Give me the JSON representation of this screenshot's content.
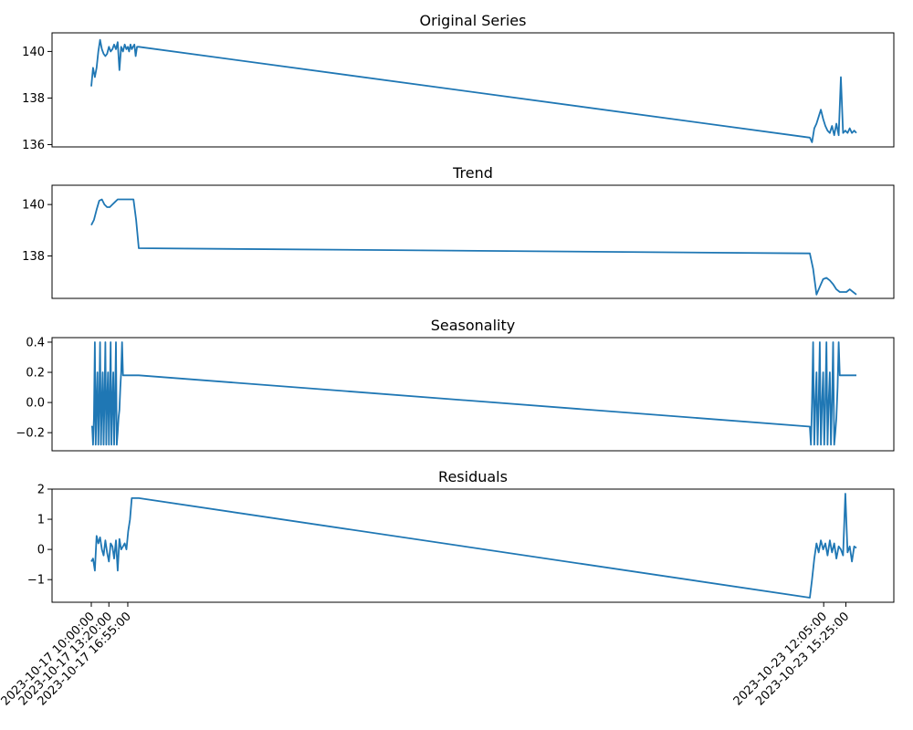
{
  "chart_data": [
    {
      "type": "line",
      "title": "Original Series",
      "ylim": [
        135.9,
        140.8
      ],
      "yticks": [
        136,
        138,
        140
      ],
      "ytick_labels": [
        "136",
        "138",
        "140"
      ],
      "series": [
        {
          "x": [
            "2023-10-17 10:00",
            "2023-10-17 10:20",
            "2023-10-17 10:40",
            "2023-10-17 11:00",
            "2023-10-17 11:20",
            "2023-10-17 11:40",
            "2023-10-17 12:00",
            "2023-10-17 12:20",
            "2023-10-17 12:40",
            "2023-10-17 13:00",
            "2023-10-17 13:20",
            "2023-10-17 13:40",
            "2023-10-17 14:00",
            "2023-10-17 14:20",
            "2023-10-17 14:40",
            "2023-10-17 15:00",
            "2023-10-17 15:20",
            "2023-10-17 15:40",
            "2023-10-17 16:00",
            "2023-10-17 16:20",
            "2023-10-17 16:40",
            "2023-10-17 16:55",
            "2023-10-17 17:10",
            "2023-10-17 17:25",
            "2023-10-17 17:40",
            "2023-10-17 17:55",
            "2023-10-17 18:10",
            "2023-10-17 18:25",
            "2023-10-17 18:40",
            "2023-10-17 19:00",
            "2023-10-23 10:00",
            "2023-10-23 10:20",
            "2023-10-23 10:40",
            "2023-10-23 11:00",
            "2023-10-23 11:20",
            "2023-10-23 11:40",
            "2023-10-23 12:00",
            "2023-10-23 12:20",
            "2023-10-23 12:40",
            "2023-10-23 13:00",
            "2023-10-23 13:20",
            "2023-10-23 13:40",
            "2023-10-23 14:00",
            "2023-10-23 14:20",
            "2023-10-23 14:40",
            "2023-10-23 15:00",
            "2023-10-23 15:20",
            "2023-10-23 15:40",
            "2023-10-23 16:00",
            "2023-10-23 16:20",
            "2023-10-23 16:40",
            "2023-10-23 17:00"
          ],
          "y": [
            138.5,
            139.3,
            138.9,
            139.3,
            140.0,
            140.5,
            140.1,
            139.9,
            139.8,
            139.9,
            140.2,
            140.0,
            140.1,
            140.3,
            140.1,
            140.4,
            139.2,
            140.2,
            140.0,
            140.3,
            140.1,
            140.2,
            140.0,
            140.3,
            140.1,
            140.2,
            140.3,
            139.8,
            140.2,
            140.2,
            136.3,
            136.1,
            136.7,
            136.9,
            137.2,
            137.5,
            137.1,
            136.8,
            136.6,
            136.5,
            136.8,
            136.4,
            136.9,
            136.4,
            138.9,
            136.5,
            136.6,
            136.5,
            136.7,
            136.5,
            136.6,
            136.5
          ]
        }
      ]
    },
    {
      "type": "line",
      "title": "Trend",
      "ylim": [
        136.35,
        140.75
      ],
      "yticks": [
        138,
        140
      ],
      "ytick_labels": [
        "138",
        "140"
      ],
      "series": [
        {
          "x": [
            "2023-10-17 10:00",
            "2023-10-17 10:30",
            "2023-10-17 11:00",
            "2023-10-17 11:30",
            "2023-10-17 12:00",
            "2023-10-17 12:30",
            "2023-10-17 13:00",
            "2023-10-17 13:30",
            "2023-10-17 14:00",
            "2023-10-17 14:30",
            "2023-10-17 15:00",
            "2023-10-17 15:30",
            "2023-10-17 16:00",
            "2023-10-17 16:30",
            "2023-10-17 17:00",
            "2023-10-17 17:30",
            "2023-10-17 18:00",
            "2023-10-17 18:30",
            "2023-10-17 19:00",
            "2023-10-23 10:00",
            "2023-10-23 10:30",
            "2023-10-23 11:00",
            "2023-10-23 11:30",
            "2023-10-23 12:00",
            "2023-10-23 12:30",
            "2023-10-23 13:00",
            "2023-10-23 13:30",
            "2023-10-23 14:00",
            "2023-10-23 14:30",
            "2023-10-23 15:00",
            "2023-10-23 15:30",
            "2023-10-23 16:00",
            "2023-10-23 16:30",
            "2023-10-23 17:00"
          ],
          "y": [
            139.2,
            139.4,
            139.8,
            140.15,
            140.2,
            140.0,
            139.9,
            139.9,
            140.0,
            140.1,
            140.2,
            140.2,
            140.2,
            140.2,
            140.2,
            140.2,
            140.2,
            139.4,
            138.3,
            138.1,
            137.5,
            136.5,
            136.8,
            137.1,
            137.15,
            137.05,
            136.9,
            136.7,
            136.6,
            136.6,
            136.6,
            136.7,
            136.6,
            136.5
          ]
        }
      ]
    },
    {
      "type": "line",
      "title": "Seasonality",
      "ylim": [
        -0.32,
        0.43
      ],
      "yticks": [
        -0.2,
        0.0,
        0.2,
        0.4
      ],
      "ytick_labels": [
        "−0.2",
        "0.0",
        "0.2",
        "0.4"
      ],
      "series": [
        {
          "x": [
            "2023-10-17 10:00",
            "2023-10-17 10:10",
            "2023-10-17 10:20",
            "2023-10-17 10:30",
            "2023-10-17 10:40",
            "2023-10-17 10:50",
            "2023-10-17 11:00",
            "2023-10-17 11:10",
            "2023-10-17 11:20",
            "2023-10-17 11:30",
            "2023-10-17 11:40",
            "2023-10-17 11:50",
            "2023-10-17 12:00",
            "2023-10-17 12:10",
            "2023-10-17 12:20",
            "2023-10-17 12:30",
            "2023-10-17 12:40",
            "2023-10-17 12:50",
            "2023-10-17 13:00",
            "2023-10-17 13:10",
            "2023-10-17 13:20",
            "2023-10-17 13:30",
            "2023-10-17 13:40",
            "2023-10-17 13:50",
            "2023-10-17 14:00",
            "2023-10-17 14:10",
            "2023-10-17 14:20",
            "2023-10-17 14:30",
            "2023-10-17 14:40",
            "2023-10-17 14:50",
            "2023-10-17 15:00",
            "2023-10-17 15:10",
            "2023-10-17 15:20",
            "2023-10-17 15:30",
            "2023-10-17 15:40",
            "2023-10-17 15:50",
            "2023-10-17 16:00",
            "2023-10-17 16:10",
            "2023-10-17 16:20",
            "2023-10-17 16:30",
            "2023-10-17 16:40",
            "2023-10-17 16:50",
            "2023-10-17 17:00",
            "2023-10-17 17:10",
            "2023-10-17 17:20",
            "2023-10-17 17:30",
            "2023-10-17 17:40",
            "2023-10-17 17:50",
            "2023-10-17 18:00",
            "2023-10-17 18:10",
            "2023-10-17 18:20",
            "2023-10-17 18:30",
            "2023-10-17 18:40",
            "2023-10-17 18:50",
            "2023-10-17 19:00",
            "2023-10-23 10:00",
            "2023-10-23 10:10",
            "2023-10-23 10:20",
            "2023-10-23 10:30",
            "2023-10-23 10:40",
            "2023-10-23 10:50",
            "2023-10-23 11:00",
            "2023-10-23 11:10",
            "2023-10-23 11:20",
            "2023-10-23 11:30",
            "2023-10-23 11:40",
            "2023-10-23 11:50",
            "2023-10-23 12:00",
            "2023-10-23 12:10",
            "2023-10-23 12:20",
            "2023-10-23 12:30",
            "2023-10-23 12:40",
            "2023-10-23 12:50",
            "2023-10-23 13:00",
            "2023-10-23 13:10",
            "2023-10-23 13:20",
            "2023-10-23 13:30",
            "2023-10-23 13:40",
            "2023-10-23 13:50",
            "2023-10-23 14:00",
            "2023-10-23 14:10",
            "2023-10-23 14:20",
            "2023-10-23 14:30",
            "2023-10-23 14:40",
            "2023-10-23 14:50",
            "2023-10-23 15:00",
            "2023-10-23 15:10",
            "2023-10-23 15:20",
            "2023-10-23 15:30",
            "2023-10-23 15:40",
            "2023-10-23 15:50",
            "2023-10-23 16:00",
            "2023-10-23 16:10",
            "2023-10-23 16:20",
            "2023-10-23 16:30",
            "2023-10-23 16:40",
            "2023-10-23 16:50",
            "2023-10-23 17:00"
          ],
          "y": [
            -0.16,
            -0.16,
            -0.28,
            -0.1,
            0.4,
            -0.28,
            0.0,
            0.2,
            -0.28,
            0.0,
            0.4,
            -0.28,
            0.0,
            0.2,
            -0.28,
            0.0,
            0.4,
            -0.28,
            0.0,
            0.2,
            -0.28,
            0.0,
            0.4,
            -0.28,
            0.0,
            0.2,
            -0.28,
            0.0,
            0.4,
            -0.28,
            -0.2,
            -0.1,
            -0.05,
            0.1,
            0.2,
            0.4,
            0.18,
            0.18,
            0.18,
            0.18,
            0.18,
            0.18,
            0.18,
            0.18,
            0.18,
            0.18,
            0.18,
            0.18,
            0.18,
            0.18,
            0.18,
            0.18,
            0.18,
            0.18,
            0.18,
            -0.16,
            -0.28,
            0.0,
            0.4,
            -0.28,
            0.0,
            0.2,
            -0.28,
            0.0,
            0.4,
            -0.28,
            0.0,
            0.2,
            -0.28,
            0.0,
            0.4,
            -0.28,
            0.0,
            0.2,
            -0.28,
            0.0,
            0.4,
            -0.28,
            -0.2,
            -0.1,
            0.1,
            0.4,
            0.18,
            0.18,
            0.18,
            0.18,
            0.18,
            0.18,
            0.18,
            0.18,
            0.18,
            0.18,
            0.18,
            0.18,
            0.18,
            0.18,
            0.18,
            0.18
          ]
        }
      ]
    },
    {
      "type": "line",
      "title": "Residuals",
      "ylim": [
        -1.75,
        2.0
      ],
      "yticks": [
        -1,
        0,
        1,
        2
      ],
      "ytick_labels": [
        "−1",
        "0",
        "1",
        "2"
      ],
      "series": [
        {
          "x": [
            "2023-10-17 10:00",
            "2023-10-17 10:20",
            "2023-10-17 10:40",
            "2023-10-17 11:00",
            "2023-10-17 11:20",
            "2023-10-17 11:40",
            "2023-10-17 12:00",
            "2023-10-17 12:20",
            "2023-10-17 12:40",
            "2023-10-17 13:00",
            "2023-10-17 13:20",
            "2023-10-17 13:40",
            "2023-10-17 14:00",
            "2023-10-17 14:20",
            "2023-10-17 14:40",
            "2023-10-17 15:00",
            "2023-10-17 15:20",
            "2023-10-17 15:40",
            "2023-10-17 16:00",
            "2023-10-17 16:20",
            "2023-10-17 16:40",
            "2023-10-17 17:00",
            "2023-10-17 17:20",
            "2023-10-17 17:40",
            "2023-10-17 18:00",
            "2023-10-17 18:20",
            "2023-10-17 18:40",
            "2023-10-17 19:00",
            "2023-10-23 10:00",
            "2023-10-23 10:20",
            "2023-10-23 10:40",
            "2023-10-23 11:00",
            "2023-10-23 11:20",
            "2023-10-23 11:40",
            "2023-10-23 12:00",
            "2023-10-23 12:20",
            "2023-10-23 12:40",
            "2023-10-23 13:00",
            "2023-10-23 13:20",
            "2023-10-23 13:40",
            "2023-10-23 14:00",
            "2023-10-23 14:20",
            "2023-10-23 14:40",
            "2023-10-23 15:00",
            "2023-10-23 15:20",
            "2023-10-23 15:40",
            "2023-10-23 16:00",
            "2023-10-23 16:20",
            "2023-10-23 16:40",
            "2023-10-23 17:00"
          ],
          "y": [
            -0.4,
            -0.3,
            -0.7,
            0.45,
            0.2,
            0.4,
            0.0,
            -0.2,
            0.3,
            -0.1,
            -0.4,
            0.2,
            0.1,
            -0.3,
            0.3,
            -0.7,
            0.35,
            0.0,
            0.1,
            0.2,
            0.0,
            0.6,
            1.0,
            1.7,
            1.7,
            1.7,
            1.7,
            1.7,
            -1.6,
            -1.0,
            -0.3,
            0.2,
            -0.1,
            0.3,
            0.0,
            0.2,
            -0.2,
            0.3,
            -0.1,
            0.2,
            -0.3,
            0.1,
            0.0,
            -0.2,
            1.85,
            -0.1,
            0.1,
            -0.4,
            0.1,
            0.05
          ]
        }
      ]
    }
  ],
  "x_axis": {
    "ticks": [
      "2023-10-17 10:00",
      "2023-10-17 13:20",
      "2023-10-17 16:55",
      "2023-10-23 12:05",
      "2023-10-23 15:25"
    ],
    "tick_labels": [
      "2023-10-17 10:00:00",
      "2023-10-17 13:20:00",
      "2023-10-17 16:55:00",
      "2023-10-23 12:05:00",
      "2023-10-23 15:25:00"
    ]
  },
  "colors": {
    "line": "#1f77b4",
    "frame": "#000000"
  }
}
